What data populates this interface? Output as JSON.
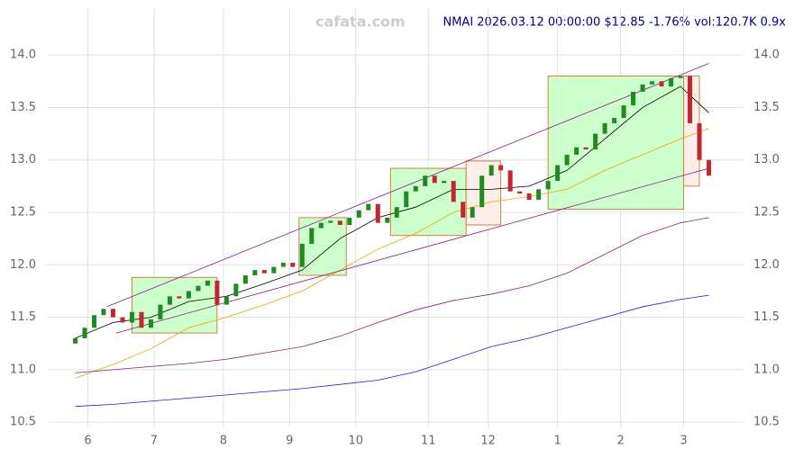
{
  "chart_data": {
    "type": "candlestick",
    "watermark": "cafata.com",
    "title": "NMAI 2026.03.12 00:00:00 $12.85 -1.76% vol:120.7K 0.9x",
    "x": [
      0,
      3,
      6,
      9,
      12,
      15,
      18,
      21,
      24,
      27,
      30,
      33,
      36,
      39,
      42,
      45,
      48,
      51,
      54,
      57,
      60,
      63,
      66,
      69,
      72,
      75,
      78,
      81,
      84,
      87,
      90,
      93,
      96,
      99,
      102,
      105,
      108,
      111,
      114,
      117,
      120,
      123,
      126,
      129,
      132,
      135,
      138,
      141,
      144,
      147,
      150,
      153,
      156,
      159,
      162,
      165,
      168,
      171,
      174,
      177,
      180,
      183,
      186,
      189,
      192,
      195,
      198,
      201
    ],
    "open": [
      11.25,
      11.3,
      11.4,
      11.52,
      11.58,
      11.5,
      11.45,
      11.55,
      11.4,
      11.48,
      11.62,
      11.7,
      11.68,
      11.75,
      11.8,
      11.85,
      11.62,
      11.7,
      11.82,
      11.9,
      11.95,
      11.92,
      11.98,
      12.02,
      11.98,
      12.2,
      12.35,
      12.4,
      12.42,
      12.38,
      12.45,
      12.52,
      12.58,
      12.4,
      12.45,
      12.55,
      12.7,
      12.75,
      12.85,
      12.78,
      12.8,
      12.6,
      12.45,
      12.55,
      12.85,
      12.95,
      12.9,
      12.7,
      12.68,
      12.62,
      12.72,
      12.8,
      12.95,
      13.05,
      13.12,
      13.1,
      13.25,
      13.35,
      13.4,
      13.52,
      13.65,
      13.72,
      13.75,
      13.7,
      13.78,
      13.8,
      13.35,
      13.0
    ],
    "close": [
      11.3,
      11.4,
      11.52,
      11.58,
      11.5,
      11.45,
      11.55,
      11.4,
      11.48,
      11.62,
      11.7,
      11.68,
      11.75,
      11.8,
      11.85,
      11.62,
      11.7,
      11.82,
      11.9,
      11.95,
      11.92,
      11.98,
      12.02,
      11.98,
      12.2,
      12.35,
      12.4,
      12.42,
      12.38,
      12.45,
      12.52,
      12.58,
      12.4,
      12.45,
      12.55,
      12.7,
      12.75,
      12.85,
      12.78,
      12.8,
      12.6,
      12.45,
      12.55,
      12.85,
      12.95,
      12.9,
      12.7,
      12.68,
      12.62,
      12.72,
      12.8,
      12.95,
      13.05,
      13.12,
      13.1,
      13.25,
      13.35,
      13.4,
      13.52,
      13.65,
      13.72,
      13.75,
      13.7,
      13.78,
      13.8,
      13.35,
      13.0,
      12.85
    ],
    "up_color": "#1f8a1f",
    "down_color": "#c3262e",
    "lines": [
      {
        "color": "#000000",
        "x": [
          0,
          12,
          24,
          36,
          48,
          60,
          72,
          84,
          96,
          108,
          120,
          132,
          144,
          156,
          168,
          180,
          192,
          201
        ],
        "values": [
          11.3,
          11.45,
          11.5,
          11.65,
          11.7,
          11.82,
          11.95,
          12.25,
          12.45,
          12.55,
          12.72,
          12.72,
          12.75,
          12.9,
          13.2,
          13.5,
          13.7,
          13.45
        ]
      },
      {
        "color": "#f0a500",
        "x": [
          0,
          12,
          24,
          36,
          48,
          60,
          72,
          84,
          96,
          108,
          120,
          132,
          144,
          156,
          168,
          180,
          192,
          201
        ],
        "values": [
          10.92,
          11.05,
          11.2,
          11.4,
          11.5,
          11.62,
          11.75,
          11.95,
          12.15,
          12.3,
          12.5,
          12.6,
          12.65,
          12.72,
          12.9,
          13.05,
          13.2,
          13.3
        ]
      },
      {
        "color": "#8b1a8b",
        "x": [
          0,
          12,
          24,
          36,
          48,
          60,
          72,
          84,
          96,
          108,
          120,
          132,
          144,
          156,
          168,
          180,
          192,
          201
        ],
        "values": [
          10.97,
          11.0,
          11.03,
          11.06,
          11.1,
          11.16,
          11.22,
          11.32,
          11.45,
          11.57,
          11.66,
          11.72,
          11.8,
          11.92,
          12.1,
          12.28,
          12.4,
          12.45
        ]
      },
      {
        "color": "#1a1ae0",
        "x": [
          0,
          12,
          24,
          36,
          48,
          60,
          72,
          84,
          96,
          108,
          120,
          132,
          144,
          156,
          168,
          180,
          192,
          201
        ],
        "values": [
          10.65,
          10.67,
          10.7,
          10.73,
          10.76,
          10.79,
          10.82,
          10.86,
          10.9,
          10.98,
          11.1,
          11.22,
          11.3,
          11.4,
          11.5,
          11.6,
          11.67,
          11.71
        ]
      },
      {
        "color": "#8b1a8b",
        "x": [
          10,
          201
        ],
        "values": [
          11.6,
          13.92
        ]
      },
      {
        "color": "#8b1a8b",
        "x": [
          13,
          201
        ],
        "values": [
          11.35,
          12.92
        ]
      }
    ],
    "boxes": [
      {
        "color": "#ccffcc",
        "x": [
          18,
          45
        ],
        "values": [
          11.35,
          11.88
        ]
      },
      {
        "color": "#ccffcc",
        "x": [
          71,
          86
        ],
        "values": [
          11.9,
          12.45
        ]
      },
      {
        "color": "#ccffcc",
        "x": [
          100,
          124
        ],
        "values": [
          12.28,
          12.92
        ]
      },
      {
        "color": "#ccffcc",
        "x": [
          150,
          193
        ],
        "values": [
          12.53,
          13.8
        ]
      },
      {
        "color": "#fdeee8",
        "x": [
          124,
          135
        ],
        "values": [
          12.38,
          12.99
        ]
      },
      {
        "color": "#fdeee8",
        "x": [
          193,
          198
        ],
        "values": [
          12.75,
          13.8
        ]
      }
    ],
    "xlim": [
      -9,
      212
    ],
    "xticks": [
      {
        "value": 4,
        "label": "6"
      },
      {
        "value": 25,
        "label": "7"
      },
      {
        "value": 47,
        "label": "8"
      },
      {
        "value": 68,
        "label": "9"
      },
      {
        "value": 89,
        "label": "10"
      },
      {
        "value": 112,
        "label": "11"
      },
      {
        "value": 131,
        "label": "12"
      },
      {
        "value": 153,
        "label": "1"
      },
      {
        "value": 173,
        "label": "2"
      },
      {
        "value": 193,
        "label": "3"
      }
    ],
    "ylim": [
      10.45,
      14.45
    ],
    "yticks": [
      10.5,
      {
        "value": 11,
        "label": "11.0"
      },
      11.5,
      {
        "value": 12,
        "label": "12.0"
      },
      12.5,
      {
        "value": 13,
        "label": "13.0"
      },
      13.5,
      {
        "value": 14,
        "label": "14.0"
      }
    ],
    "grid": true
  }
}
